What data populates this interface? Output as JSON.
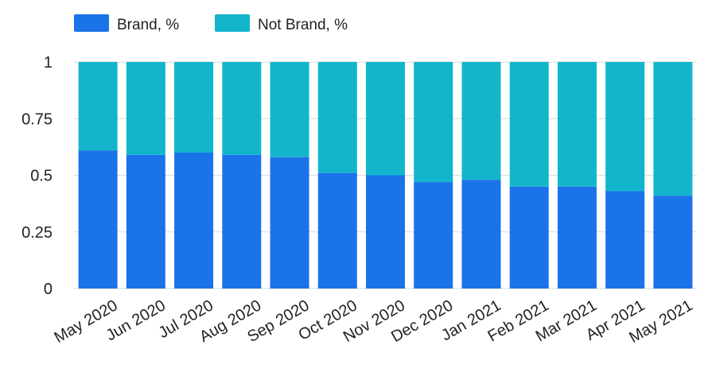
{
  "colors": {
    "brand": "#1a73e8",
    "not_brand": "#12b5cb",
    "grid": "#d9d9d9",
    "text": "#222222"
  },
  "legend": {
    "brand_label": "Brand, %",
    "not_brand_label": "Not Brand, %"
  },
  "chart_data": {
    "type": "bar",
    "stacked": true,
    "categories": [
      "May 2020",
      "Jun 2020",
      "Jul 2020",
      "Aug 2020",
      "Sep 2020",
      "Oct 2020",
      "Nov 2020",
      "Dec 2020",
      "Jan 2021",
      "Feb 2021",
      "Mar 2021",
      "Apr 2021",
      "May 2021"
    ],
    "series": [
      {
        "name": "Brand, %",
        "values": [
          0.61,
          0.59,
          0.6,
          0.59,
          0.58,
          0.51,
          0.5,
          0.47,
          0.48,
          0.45,
          0.45,
          0.43,
          0.41
        ]
      },
      {
        "name": "Not Brand, %",
        "values": [
          0.39,
          0.41,
          0.4,
          0.41,
          0.42,
          0.49,
          0.5,
          0.53,
          0.52,
          0.55,
          0.55,
          0.57,
          0.59
        ]
      }
    ],
    "yticks": [
      "0",
      "0.25",
      "0.5",
      "0.75",
      "1"
    ],
    "ylim": [
      0,
      1
    ],
    "grid": true,
    "legend_position": "top-left"
  }
}
